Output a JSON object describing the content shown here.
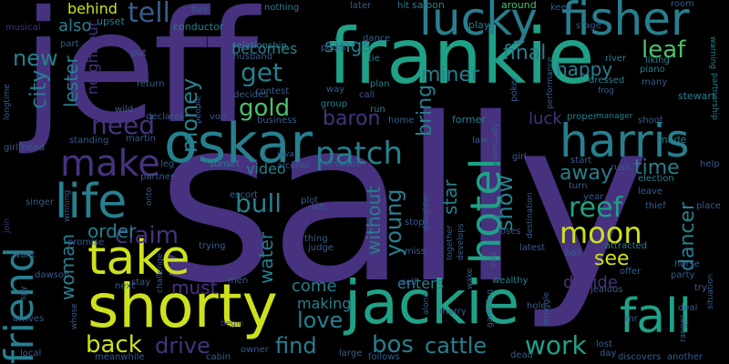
{
  "palette": {
    "purple": "#46327e",
    "indigo": "#365c8d",
    "blue": "#3b528b",
    "teal": "#277f8e",
    "green": "#1fa187",
    "lime": "#4ac16d",
    "yellow": "#cde11d",
    "bright": "#fde725"
  },
  "words": {
    "sally": "sally",
    "jeff": "jeff",
    "frankie": "frankie",
    "jackie": "jackie",
    "shorty": "shorty",
    "oskar": "oskar",
    "lucky": "lucky",
    "fisher": "fisher",
    "harris": "harris",
    "friend": "friend",
    "take": "take",
    "fall": "fall",
    "life": "life",
    "hotel": "hotel",
    "make": "make",
    "patch": "patch",
    "moon": "moon",
    "reef": "reef",
    "claim": "claim",
    "bull": "bull",
    "gold": "gold",
    "money": "money",
    "get": "get",
    "need": "need",
    "tell": "tell",
    "city": "city",
    "new": "new",
    "miner": "miner",
    "final": "final",
    "happy": "happy",
    "leaf": "leaf",
    "lester": "lester",
    "neighbour": "neighbour",
    "baron": "baron",
    "bring": "bring",
    "show": "show",
    "young": "young",
    "star": "star",
    "luck": "luck",
    "away": "away",
    "time": "time",
    "see": "see",
    "dancer": "dancer",
    "decide": "decide",
    "work": "work",
    "cattle": "cattle",
    "bos": "bos",
    "find": "find",
    "drive": "drive",
    "back": "back",
    "love": "love",
    "come": "come",
    "making": "making",
    "must": "must",
    "woman": "woman",
    "water": "water",
    "order": "order",
    "video": "video",
    "without": "without",
    "enters": "enters",
    "sings": "sings",
    "becomes": "becomes",
    "also": "also",
    "behind": "behind",
    "upset": "upset",
    "musical": "musical",
    "part": "part",
    "conductor": "conductor",
    "buy": "buy",
    "nothing": "nothing",
    "later": "later",
    "hit": "hit",
    "saloon": "saloon",
    "around": "around",
    "keep": "keep",
    "room": "room",
    "warning": "warning",
    "relationship": "relationship",
    "husband": "husband",
    "pours": "pours",
    "tie": "tie",
    "dance": "dance",
    "play": "play",
    "stage": "stage",
    "river": "river",
    "liking": "liking",
    "piano": "piano",
    "many": "many",
    "frog": "frog",
    "dressed": "dressed",
    "return": "return",
    "put": "put",
    "contest": "contest",
    "way": "way",
    "plan": "plan",
    "run": "run",
    "call": "call",
    "poker": "poker",
    "performance": "performance",
    "stewart": "stewart",
    "partnership": "partnership",
    "longtime": "longtime",
    "world": "world",
    "wild": "wild",
    "declares": "declares",
    "decides": "decides",
    "von": "von",
    "business": "business",
    "group": "group",
    "home": "home",
    "former": "former",
    "proper": "proper",
    "manager": "manager",
    "shoot": "shoot",
    "girlfriend": "girlfriend",
    "standing": "standing",
    "martin": "martin",
    "people": "people",
    "law": "law",
    "made": "made",
    "leg": "leg",
    "sunset": "sunset",
    "alcohol": "alcohol",
    "persuade": "persuade",
    "eventually": "eventually",
    "girl": "girl",
    "start": "start",
    "rush": "rush",
    "election": "election",
    "help": "help",
    "partner": "partner",
    "java": "java",
    "turn": "turn",
    "leave": "leave",
    "singer": "singer",
    "winning": "winning",
    "onto": "onto",
    "escort": "escort",
    "plot": "plot",
    "left": "left",
    "daughter": "daughter",
    "destination": "destination",
    "year": "year",
    "thief": "thief",
    "place": "place",
    "join": "join",
    "promise": "promise",
    "trying": "trying",
    "thing": "thing",
    "judge": "judge",
    "stop": "stop",
    "together": "together",
    "develops": "develops",
    "loses": "loses",
    "ball": "ball",
    "attracted": "attracted",
    "want": "want",
    "challenge": "challenge",
    "latest": "latest",
    "miss": "miss",
    "end": "end",
    "offer": "offer",
    "party": "party",
    "horse": "horse",
    "spy": "spy",
    "dawson": "dawson",
    "next": "next",
    "stay": "stay",
    "men": "men",
    "sell": "sell",
    "wake": "wake",
    "wealthy": "wealthy",
    "try": "try",
    "jealous": "jealous",
    "situation": "situation",
    "arrives": "arrives",
    "whose": "whose",
    "begin": "begin",
    "alone": "alone",
    "marry": "marry",
    "gambling": "gambling",
    "struggle": "struggle",
    "hole": "hole",
    "deal": "deal",
    "ranger": "ranger",
    "mr": "mr",
    "local": "local",
    "meanwhile": "meanwhile",
    "cabin": "cabin",
    "owner": "owner",
    "large": "large",
    "follows": "follows",
    "lost": "lost",
    "day": "day",
    "discovers": "discovers",
    "another": "another",
    "dead": "dead"
  }
}
